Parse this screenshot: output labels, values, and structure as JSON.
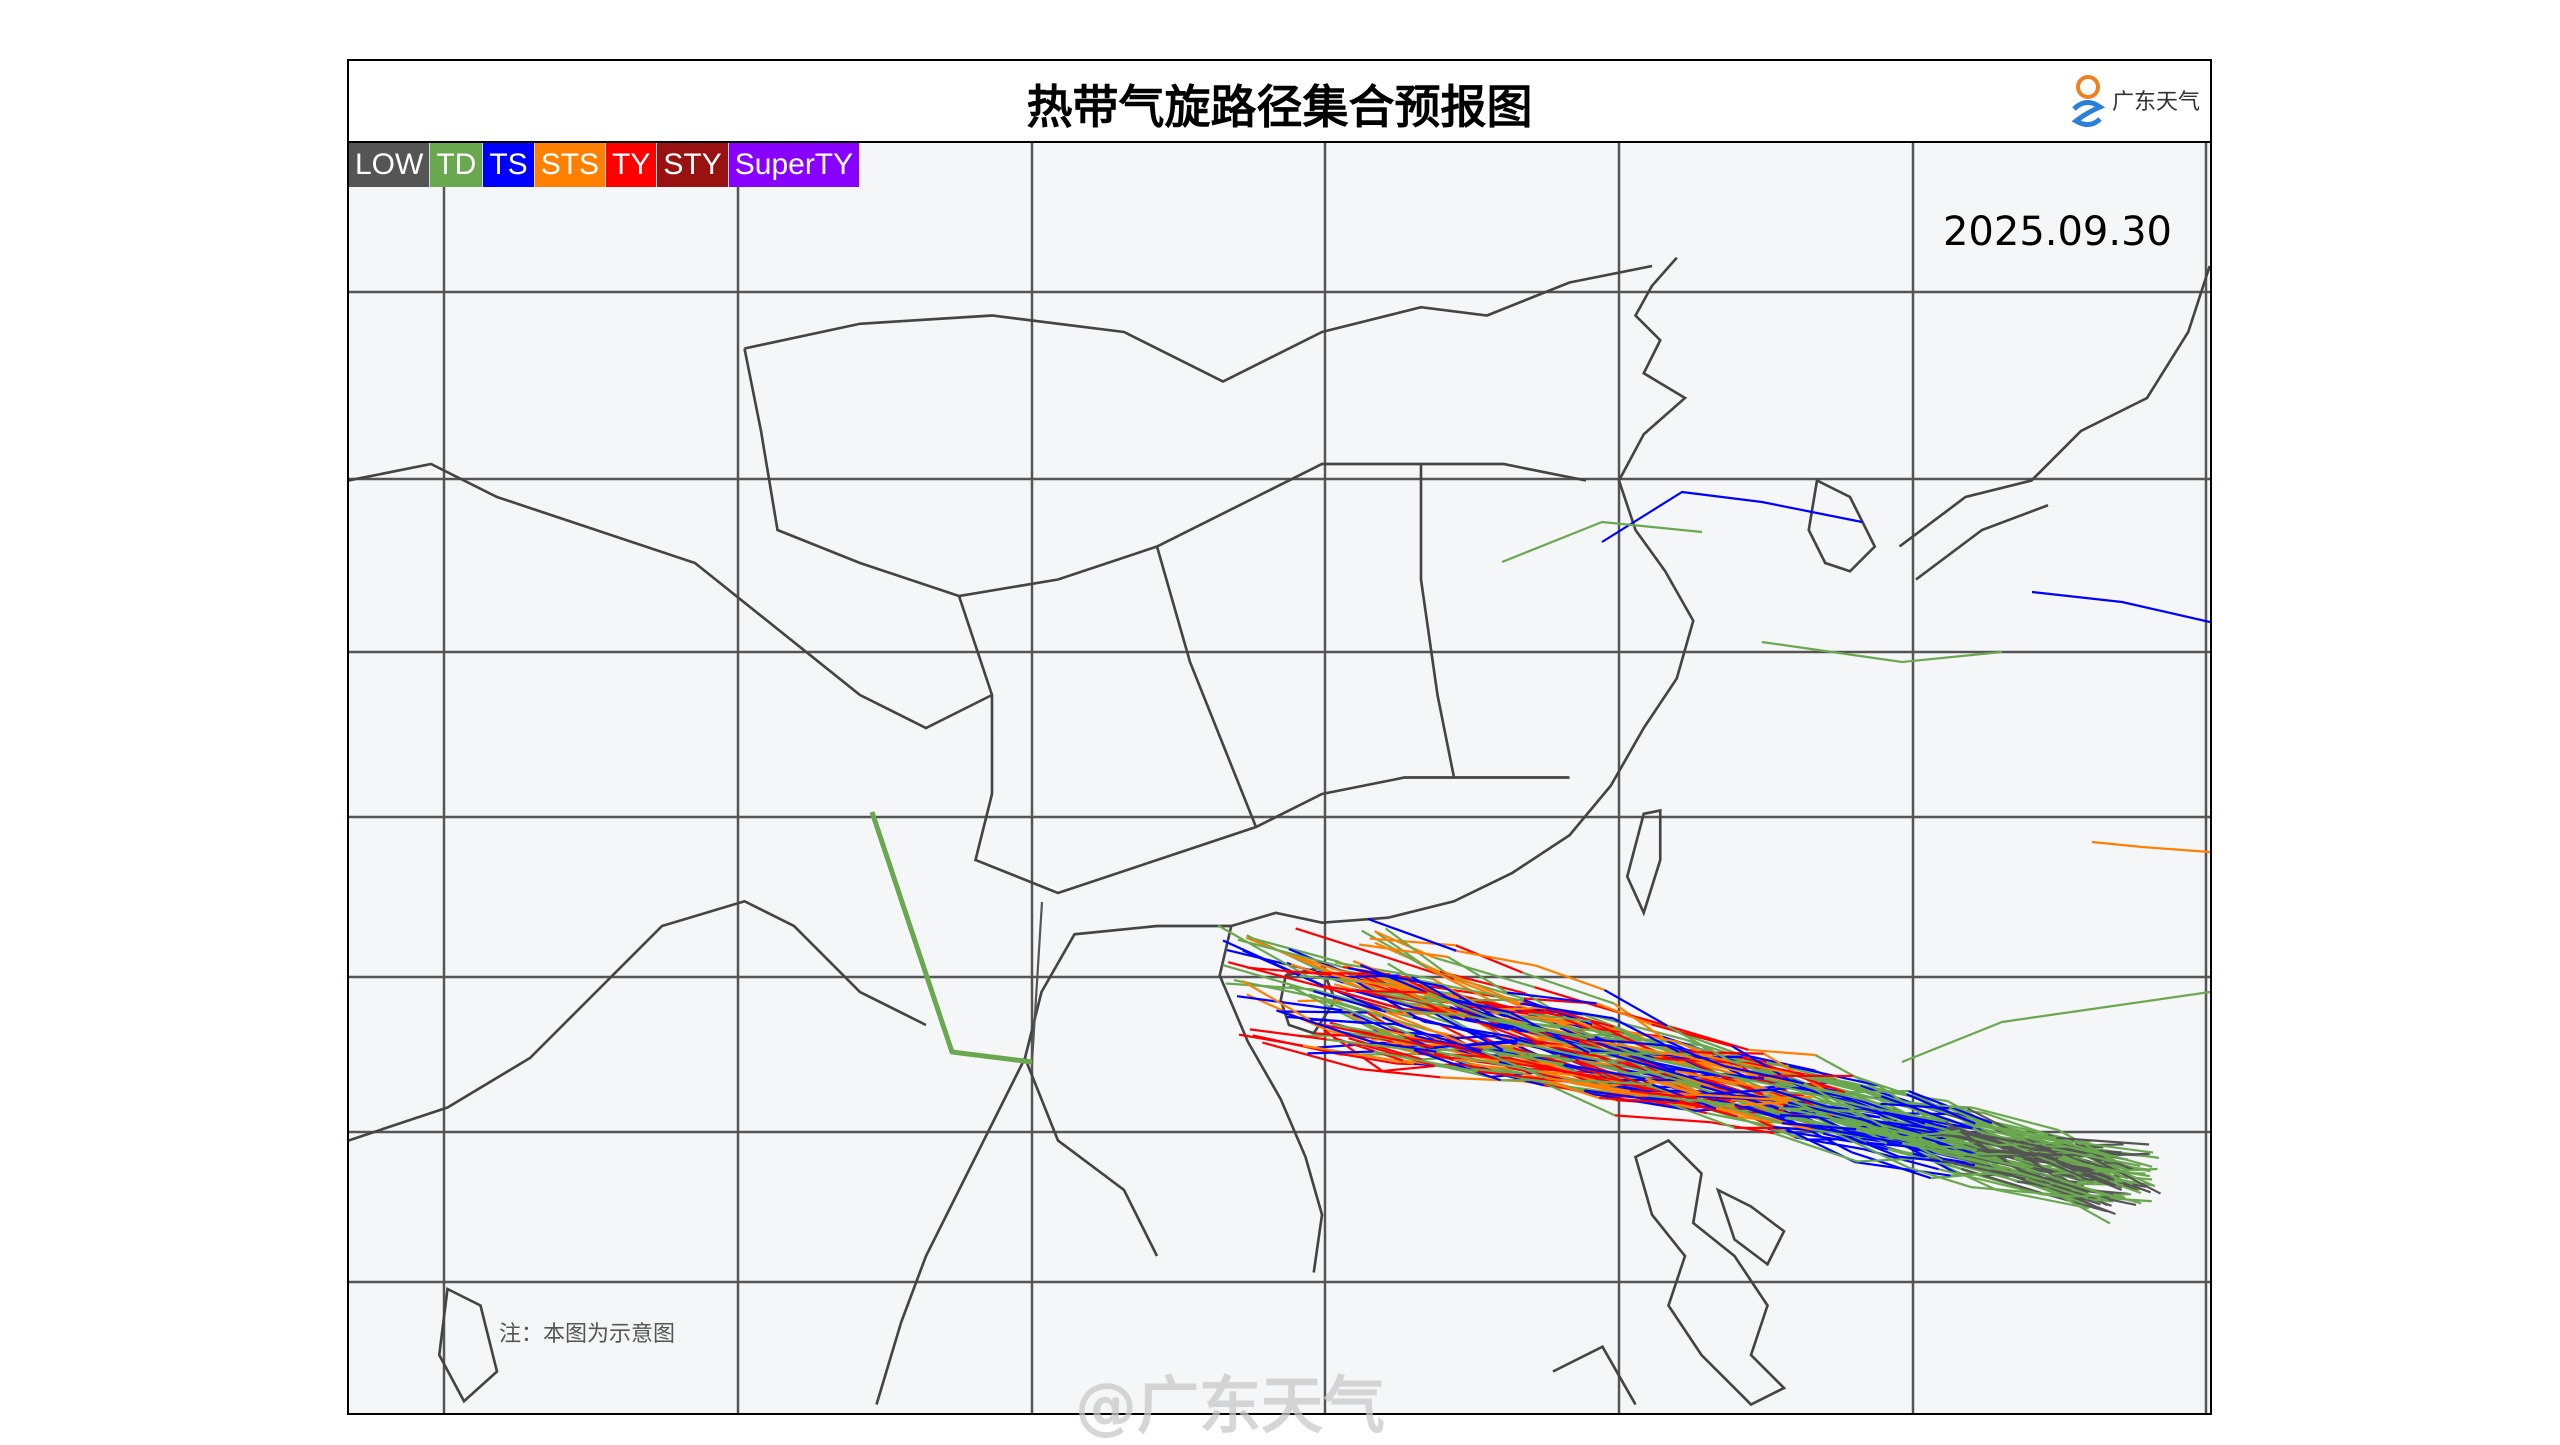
{
  "header": {
    "title": "热带气旋路径集合预报图",
    "logo_text": "广东天气"
  },
  "legend": [
    {
      "label": "LOW",
      "color": "#555555"
    },
    {
      "label": "TD",
      "color": "#6aa84f"
    },
    {
      "label": "TS",
      "color": "#0000ff"
    },
    {
      "label": "STS",
      "color": "#ff7f00"
    },
    {
      "label": "TY",
      "color": "#ff0000"
    },
    {
      "label": "STY",
      "color": "#991111"
    },
    {
      "label": "SuperTY",
      "color": "#8800ff"
    }
  ],
  "date": "2025.09.30",
  "note": "注：本图为示意图",
  "watermark": "@广东天气"
}
